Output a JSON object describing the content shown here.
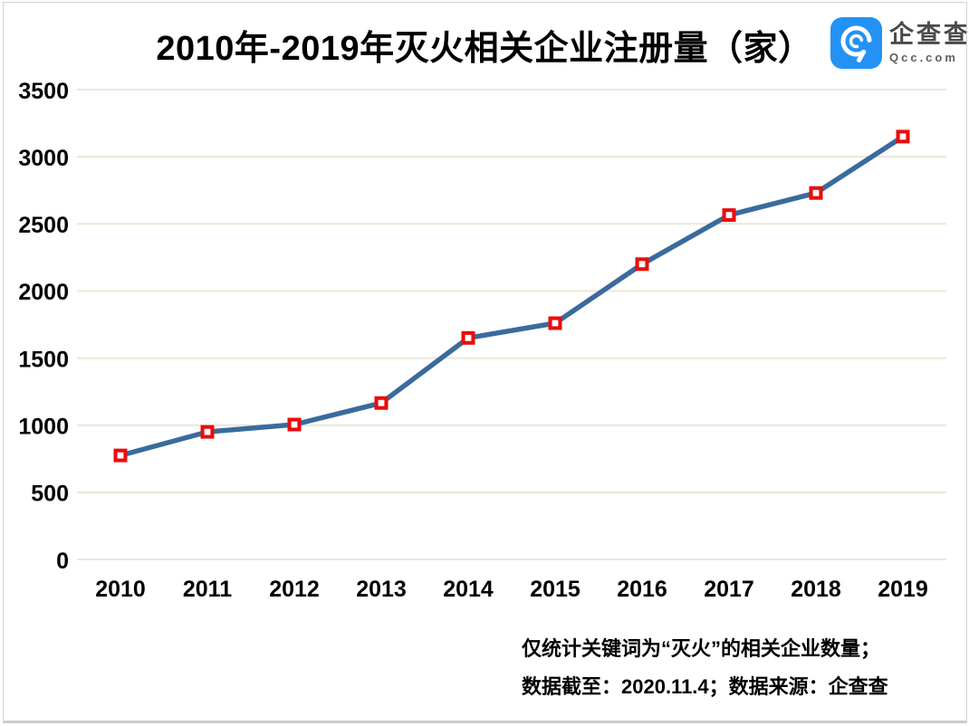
{
  "header": {
    "title": "2010年-2019年灭火相关企业注册量（家）",
    "logo": {
      "name": "企查查",
      "domain": "Qcc.com"
    }
  },
  "footnote": {
    "line1": "仅统计关键词为“灭火”的相关企业数量；",
    "line2": "数据截至：2020.11.4；数据来源：企查查"
  },
  "chart_data": {
    "type": "line",
    "title": "2010年-2019年灭火相关企业注册量（家）",
    "categories": [
      "2010",
      "2011",
      "2012",
      "2013",
      "2014",
      "2015",
      "2016",
      "2017",
      "2018",
      "2019"
    ],
    "series": [
      {
        "name": "灭火相关企业注册量（家）",
        "values": [
          775,
          950,
          1005,
          1165,
          1650,
          1760,
          2200,
          2565,
          2730,
          3150
        ]
      }
    ],
    "xlabel": "",
    "ylabel": "",
    "ylim": [
      0,
      3500
    ],
    "yticks": [
      0,
      500,
      1000,
      1500,
      2000,
      2500,
      3000,
      3500
    ],
    "grid": true,
    "legend_position": "none",
    "marker_shape": "open-square",
    "colors": {
      "line": "#3A6B9C",
      "marker_border": "#E90D0D",
      "marker_fill": "#FFFFFF",
      "gridline": "#ECE7D8",
      "axis_text": "#000000",
      "logo_blue": "#2492F4",
      "frame_border": "#D4D4D4",
      "background": "#FFFFFF"
    }
  }
}
